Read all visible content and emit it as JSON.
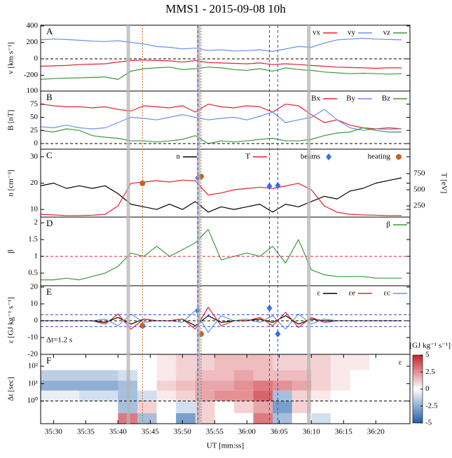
{
  "title": "MMS1 - 2015-09-08 10h",
  "vertical_lines": [
    {
      "style": "band",
      "color": "#b4b4b4",
      "x": [
        2141.6,
        2152.5,
        2169.6
      ]
    },
    {
      "style": "dotted",
      "color": "#c8641e",
      "x": [
        2143.8,
        2152.9
      ]
    },
    {
      "style": "dashed",
      "color": "#3050e0",
      "x": [
        2152.4,
        2163.5,
        2164.8
      ]
    }
  ],
  "chart_data": [
    {
      "type": "line",
      "title": "A",
      "ylabel": "v [km s⁻¹]",
      "xlim": [
        2128,
        2185.3
      ],
      "ylim": [
        -391,
        408
      ],
      "yticks": [
        400,
        200,
        0,
        -200
      ],
      "hlines": [
        {
          "value": 0,
          "color": "#000000",
          "style": "dashed"
        }
      ],
      "x": [
        2128,
        2130,
        2132,
        2134,
        2136,
        2138,
        2140,
        2142,
        2144,
        2146,
        2148,
        2150,
        2152,
        2154,
        2156,
        2158,
        2160,
        2162,
        2164,
        2166,
        2168,
        2170,
        2172,
        2174,
        2176,
        2178,
        2180,
        2182,
        2184
      ],
      "series": [
        {
          "name": "vx",
          "color": "#e8202a",
          "values": [
            -90,
            -85,
            -80,
            -70,
            -65,
            -60,
            -40,
            -20,
            -15,
            -20,
            -25,
            -40,
            -20,
            -45,
            -50,
            -55,
            -60,
            -50,
            -70,
            -60,
            -70,
            -80,
            -90,
            -100,
            -105,
            -110,
            -115,
            -110,
            -110
          ]
        },
        {
          "name": "vy",
          "color": "#6b8ff0",
          "values": [
            230,
            240,
            235,
            225,
            215,
            210,
            220,
            200,
            180,
            150,
            140,
            120,
            130,
            100,
            110,
            95,
            100,
            110,
            90,
            120,
            150,
            140,
            190,
            230,
            240,
            250,
            240,
            235,
            230
          ]
        },
        {
          "name": "vz",
          "color": "#3a9a3a",
          "values": [
            -250,
            -240,
            -235,
            -230,
            -225,
            -220,
            -250,
            -150,
            -120,
            -110,
            -100,
            -130,
            -120,
            -100,
            -110,
            -130,
            -140,
            -120,
            -150,
            -110,
            -130,
            -140,
            -160,
            -170,
            -180,
            -175,
            -180,
            -185,
            -180
          ]
        }
      ]
    },
    {
      "type": "line",
      "title": "B",
      "ylabel": "B [nT]",
      "xlim": [
        2128,
        2185.3
      ],
      "ylim": [
        -10.7,
        100
      ],
      "yticks": [
        100,
        75,
        50,
        25,
        0
      ],
      "hlines": [
        {
          "value": 0,
          "color": "#000000",
          "style": "dashed"
        }
      ],
      "x": [
        2128,
        2130,
        2132,
        2134,
        2136,
        2138,
        2140,
        2142,
        2144,
        2146,
        2148,
        2150,
        2152,
        2154,
        2156,
        2158,
        2160,
        2162,
        2164,
        2166,
        2168,
        2170,
        2172,
        2174,
        2176,
        2178,
        2180,
        2182,
        2184
      ],
      "series": [
        {
          "name": "Bx",
          "color": "#e8202a",
          "values": [
            75,
            72,
            70,
            70,
            68,
            70,
            65,
            62,
            72,
            70,
            68,
            72,
            60,
            75,
            70,
            68,
            72,
            70,
            60,
            75,
            72,
            55,
            40,
            45,
            35,
            30,
            28,
            30,
            28
          ]
        },
        {
          "name": "By",
          "color": "#6b8ff0",
          "values": [
            32,
            30,
            35,
            30,
            28,
            30,
            40,
            50,
            48,
            45,
            50,
            55,
            50,
            45,
            48,
            50,
            45,
            52,
            60,
            40,
            45,
            50,
            65,
            45,
            30,
            25,
            28,
            27,
            28
          ]
        },
        {
          "name": "Bz",
          "color": "#3a9a3a",
          "values": [
            25,
            22,
            28,
            25,
            15,
            12,
            10,
            5,
            5,
            3,
            5,
            8,
            15,
            0,
            5,
            3,
            5,
            8,
            10,
            5,
            5,
            8,
            15,
            20,
            22,
            30,
            25,
            22,
            22
          ]
        }
      ]
    },
    {
      "type": "line",
      "title": "C",
      "ylabel": "n [cm⁻³]",
      "y2label": "T [eV]",
      "xlim": [
        2128,
        2185.3
      ],
      "ylim": [
        7.1,
        32.9
      ],
      "yticks": [
        30,
        20,
        10
      ],
      "y2lim": [
        76,
        1130
      ],
      "y2ticks": [
        750,
        500,
        250
      ],
      "x": [
        2128,
        2130,
        2132,
        2134,
        2136,
        2138,
        2140,
        2142,
        2144,
        2146,
        2148,
        2150,
        2152,
        2154,
        2156,
        2158,
        2160,
        2162,
        2164,
        2166,
        2168,
        2170,
        2172,
        2174,
        2176,
        2178,
        2180,
        2182,
        2184
      ],
      "series": [
        {
          "name": "n",
          "color": "#000000",
          "values": [
            19,
            20,
            18,
            19,
            18,
            19,
            16,
            12,
            11,
            10,
            12,
            10,
            13,
            9,
            11,
            10,
            11,
            12,
            9,
            12,
            11,
            13,
            15,
            14,
            17,
            18,
            20,
            21,
            22
          ]
        },
        {
          "name": "T",
          "color": "#e8202a",
          "axis": "y2",
          "values": [
            120,
            110,
            100,
            100,
            105,
            120,
            250,
            600,
            620,
            640,
            620,
            650,
            640,
            420,
            450,
            500,
            520,
            540,
            520,
            560,
            600,
            500,
            250,
            150,
            120,
            110,
            105,
            100,
            100
          ]
        },
        {
          "name": "beams",
          "color": "#3a6ee8",
          "marker": "diamond",
          "axis": "y2",
          "x": [
            2152.4,
            2163.5,
            2164.8
          ],
          "values": [
            685,
            555,
            565
          ]
        },
        {
          "name": "heating",
          "color": "#c8641e",
          "marker": "circle",
          "axis": "y2",
          "x": [
            2143.8,
            2152.9
          ],
          "values": [
            600,
            706
          ]
        }
      ]
    },
    {
      "type": "line",
      "title": "D",
      "ylabel": "β",
      "xlim": [
        2128,
        2185.3
      ],
      "ylim": [
        0.125,
        2.17
      ],
      "yticks": [
        2,
        1.5,
        1,
        0.5
      ],
      "hlines": [
        {
          "value": 1,
          "color": "#e8202a",
          "style": "dashed"
        }
      ],
      "x": [
        2128,
        2130,
        2132,
        2134,
        2136,
        2138,
        2140,
        2142,
        2144,
        2146,
        2148,
        2150,
        2152,
        2154,
        2156,
        2158,
        2160,
        2162,
        2164,
        2166,
        2168,
        2170,
        2172,
        2174,
        2176,
        2178,
        2180,
        2182,
        2184
      ],
      "series": [
        {
          "name": "β",
          "color": "#3a9a3a",
          "values": [
            0.3,
            0.3,
            0.35,
            0.3,
            0.4,
            0.5,
            0.7,
            1.1,
            1.0,
            1.3,
            1.0,
            1.2,
            1.4,
            1.8,
            0.9,
            1.0,
            1.1,
            1.0,
            1.3,
            0.8,
            1.5,
            0.6,
            0.45,
            0.4,
            0.4,
            0.4,
            0.35,
            0.35,
            0.35
          ]
        }
      ]
    },
    {
      "type": "line",
      "title": "E",
      "ylabel": "ε [GJ kg⁻¹ s⁻¹]",
      "annotation": "Δt=1.2 s",
      "xlim": [
        2128,
        2185.3
      ],
      "ylim": [
        -20,
        20.8
      ],
      "yticks": [
        20,
        10,
        0,
        -10,
        -20
      ],
      "hlines": [
        {
          "value": 0,
          "color": "#000000",
          "style": "dashed"
        },
        {
          "value": 3.5,
          "color": "#3050e0",
          "style": "dashed"
        },
        {
          "value": -3.5,
          "color": "#3050e0",
          "style": "dashed"
        }
      ],
      "x": [
        2128,
        2130,
        2132,
        2134,
        2136,
        2138,
        2140,
        2142,
        2144,
        2146,
        2148,
        2150,
        2152,
        2154,
        2156,
        2158,
        2160,
        2162,
        2164,
        2166,
        2168,
        2170,
        2172,
        2174,
        2176,
        2178,
        2180,
        2182,
        2184
      ],
      "series": [
        {
          "name": "ε",
          "color": "#000000",
          "values": [
            0,
            0,
            0,
            0,
            0,
            -1,
            2,
            -2,
            1,
            0,
            0,
            1,
            -3,
            3,
            -1,
            0,
            0,
            1,
            -1,
            3,
            -2,
            1,
            0,
            0,
            0,
            0,
            0,
            0,
            0
          ]
        },
        {
          "name": "εe",
          "color": "#e8202a",
          "values": [
            0,
            0,
            0,
            0,
            0,
            -2,
            4,
            -5,
            1,
            0,
            0,
            1,
            -5,
            8,
            -3,
            0,
            0,
            2,
            -3,
            5,
            -4,
            2,
            -1,
            0,
            0,
            0,
            0,
            0,
            0
          ]
        },
        {
          "name": "εc",
          "color": "#6b8ff0",
          "values": [
            0,
            0,
            0,
            0,
            0,
            1,
            -3,
            4,
            -1,
            0,
            0,
            -1,
            6,
            -7,
            3,
            0,
            1,
            -1,
            3,
            -5,
            4,
            -2,
            1,
            0,
            0,
            0,
            0,
            0,
            0
          ]
        },
        {
          "color": "#3a6ee8",
          "marker": "diamond",
          "x": [
            2152.4,
            2163.5,
            2164.8
          ],
          "values": [
            6.25,
            7.5,
            -7.9
          ]
        },
        {
          "color": "#c8641e",
          "marker": "circle",
          "x": [
            2143.8,
            2152.9
          ],
          "values": [
            -3,
            -7.9
          ]
        }
      ]
    },
    {
      "type": "heatmap",
      "title": "F",
      "ylabel": "Δt [sec]",
      "xlabel": "UT [mm:ss]",
      "annotation": "ε",
      "colorbar_label": "[GJ kg⁻¹ s⁻¹]",
      "xlim": [
        2128,
        2185.3
      ],
      "xticks": [
        {
          "value": 2130,
          "label": "35:30"
        },
        {
          "value": 2135,
          "label": "35:35"
        },
        {
          "value": 2140,
          "label": "35:40"
        },
        {
          "value": 2145,
          "label": "35:45"
        },
        {
          "value": 2150,
          "label": "35:50"
        },
        {
          "value": 2155,
          "label": "35:55"
        },
        {
          "value": 2160,
          "label": "36:00"
        },
        {
          "value": 2165,
          "label": "36:05"
        },
        {
          "value": 2170,
          "label": "36:10"
        },
        {
          "value": 2175,
          "label": "36:15"
        },
        {
          "value": 2180,
          "label": "36:20"
        }
      ],
      "ylog": true,
      "ylim": [
        0.05,
        480
      ],
      "yticks": [
        {
          "value": 100,
          "label": "10²"
        },
        {
          "value": 10,
          "label": "10¹"
        },
        {
          "value": 1,
          "label": "10⁰"
        }
      ],
      "hlines": [
        {
          "value": 1,
          "color": "#000000",
          "style": "dashed"
        }
      ],
      "clim": [
        -5,
        5
      ],
      "cticks": [
        5,
        2.5,
        0,
        -2.5,
        -5
      ],
      "colormap": [
        "#1f5fa8",
        "#ffffff",
        "#c8202a"
      ],
      "x_edges": [
        2128,
        2131,
        2134,
        2137,
        2140,
        2143,
        2146,
        2149,
        2152,
        2155,
        2158,
        2161,
        2164,
        2167,
        2170,
        2173,
        2176,
        2179,
        2182,
        2185
      ],
      "y_edges": [
        0.05,
        0.2,
        1,
        4,
        15,
        60,
        480
      ],
      "values": [
        [
          0,
          0,
          0,
          0,
          3,
          -2,
          0,
          -3,
          1,
          0,
          0,
          3,
          -2,
          0,
          -1,
          0,
          0,
          0,
          0
        ],
        [
          0,
          0,
          0,
          0,
          -2,
          1,
          0,
          -1,
          1,
          0,
          1,
          2,
          -3,
          1,
          0,
          0,
          0,
          0,
          0
        ],
        [
          -0.5,
          -0.5,
          -1,
          -1,
          -2,
          -1,
          0.5,
          1,
          2,
          2.5,
          2.5,
          3.5,
          -2,
          1,
          0.5,
          0,
          0,
          0,
          0
        ],
        [
          -2.5,
          -2.5,
          -2.5,
          -2.5,
          -2,
          0,
          1,
          1.5,
          2,
          2,
          2.5,
          3,
          2.5,
          2,
          1,
          0.5,
          0,
          0,
          0
        ],
        [
          -1.5,
          -1.5,
          -1.5,
          -1.5,
          -1,
          0,
          0.5,
          1,
          1.5,
          1.5,
          2,
          1.5,
          1.5,
          1.5,
          1,
          0.5,
          0,
          0,
          0
        ],
        [
          0,
          0,
          0,
          0,
          0,
          0,
          0.5,
          1,
          1,
          1.5,
          1.5,
          1.5,
          1,
          1,
          1,
          0.5,
          0.5,
          0,
          0
        ]
      ]
    }
  ]
}
